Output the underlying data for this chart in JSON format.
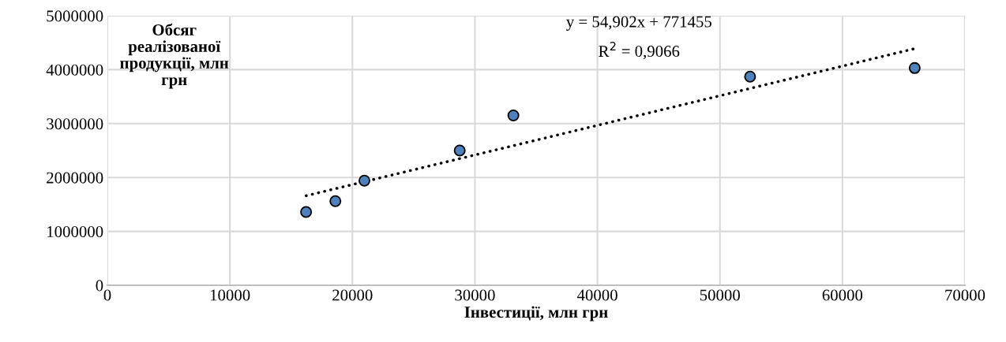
{
  "chart_data": {
    "type": "scatter",
    "xlabel": "Інвестиції, млн грн",
    "ylabel": "Обсяг\nреалізованої\nпродукції, млн\nгрн",
    "x": [
      16220,
      18610,
      20980,
      28760,
      33140,
      52460,
      65900
    ],
    "series": [
      {
        "color": "#4f81bd",
        "marker": "circle",
        "values": [
          1360000,
          1560000,
          1940000,
          2500000,
          3150000,
          3870000,
          4030000
        ]
      },
      {
        "type": "line",
        "color": "#000000",
        "line_style": "dotted",
        "marker": "none",
        "x": [
          16220,
          65900
        ],
        "values": [
          1660000,
          4390000
        ]
      }
    ],
    "annotations": [
      "y = 54,902x + 771455",
      "R$^{2}$ = 0,9066"
    ],
    "xlim": [
      0,
      70000
    ],
    "xticks": [
      0,
      10000,
      20000,
      30000,
      40000,
      50000,
      60000,
      70000
    ],
    "ylim": [
      0,
      5000000
    ],
    "yticks": [
      0,
      1000000,
      2000000,
      3000000,
      4000000,
      5000000
    ],
    "grid": true,
    "legend": false
  }
}
